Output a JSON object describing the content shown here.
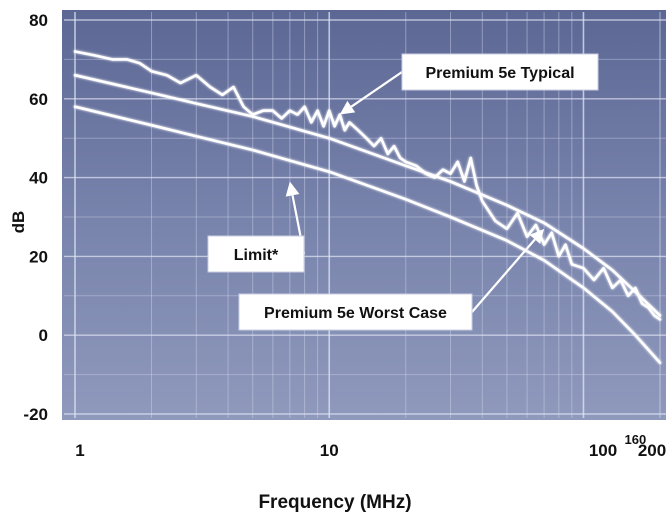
{
  "chart_data": {
    "type": "line",
    "title": "",
    "xlabel": "Frequency (MHz)",
    "ylabel": "dB",
    "x_scale": "log",
    "xlim": [
      1,
      200
    ],
    "ylim": [
      -20,
      80
    ],
    "x_ticks": [
      {
        "value": 1,
        "label": "1"
      },
      {
        "value": 10,
        "label": "10"
      },
      {
        "value": 100,
        "label": "100"
      },
      {
        "value": 160,
        "label": "160"
      },
      {
        "value": 200,
        "label": "200"
      }
    ],
    "y_ticks": [
      {
        "value": 80,
        "label": "80"
      },
      {
        "value": 60,
        "label": "60"
      },
      {
        "value": 40,
        "label": "40"
      },
      {
        "value": 20,
        "label": "20"
      },
      {
        "value": 0,
        "label": "0"
      },
      {
        "value": -20,
        "label": "-20"
      }
    ],
    "grid": true,
    "background_color": "#6e79a6",
    "line_color": "#ffffff",
    "series": [
      {
        "name": "Premium 5e Typical",
        "x": [
          1,
          1.2,
          1.4,
          1.6,
          1.8,
          2,
          2.3,
          2.6,
          3,
          3.4,
          3.8,
          4.2,
          4.6,
          5,
          5.5,
          6,
          6.5,
          7,
          7.5,
          8,
          8.5,
          9,
          9.5,
          10,
          10.5,
          11,
          11.5,
          12,
          13,
          14,
          15,
          16,
          17,
          18,
          19,
          20,
          22,
          24,
          26,
          28,
          30,
          32,
          34,
          36,
          38,
          40,
          45,
          50,
          55,
          60,
          65,
          70,
          75,
          80,
          85,
          90,
          100,
          110,
          120,
          130,
          140,
          150,
          160,
          170,
          180,
          190,
          200
        ],
        "values": [
          72,
          71,
          70,
          70,
          69,
          67,
          66,
          64,
          66,
          63,
          61,
          63,
          58,
          56,
          57,
          57,
          55,
          57,
          56,
          58,
          54,
          57,
          53,
          57,
          53,
          56,
          52,
          54,
          52,
          50,
          48,
          50,
          46,
          48,
          45,
          44,
          43,
          41,
          40,
          42,
          41,
          44,
          39,
          45,
          38,
          34,
          29,
          27,
          31,
          25,
          28,
          23,
          26,
          20,
          23,
          18,
          17,
          14,
          17,
          12,
          14,
          10,
          12,
          8,
          7,
          5,
          4
        ]
      },
      {
        "name": "Limit*",
        "x": [
          1,
          2,
          3,
          5,
          10,
          20,
          30,
          50,
          70,
          100,
          130,
          160,
          200
        ],
        "values": [
          66,
          61.5,
          58.8,
          55.5,
          50,
          43,
          39,
          33,
          28.5,
          22,
          16.5,
          11,
          5
        ]
      },
      {
        "name": "Premium 5e Worst Case",
        "x": [
          1,
          2,
          3,
          5,
          10,
          20,
          30,
          50,
          70,
          100,
          130,
          160,
          200
        ],
        "values": [
          58,
          53.3,
          50.5,
          47,
          41.5,
          34.5,
          30,
          24,
          19,
          12,
          6,
          0,
          -7
        ]
      }
    ],
    "annotations": [
      {
        "text": "Premium 5e Typical",
        "points_to": "Premium 5e Typical",
        "at_x": 11,
        "at_y": 56
      },
      {
        "text": "Limit*",
        "points_to": "Premium 5e Worst Case",
        "at_x": 7,
        "at_y": 39
      },
      {
        "text": "Premium 5e Worst Case",
        "points_to": "Limit*",
        "at_x": 70,
        "at_y": 27
      }
    ]
  }
}
